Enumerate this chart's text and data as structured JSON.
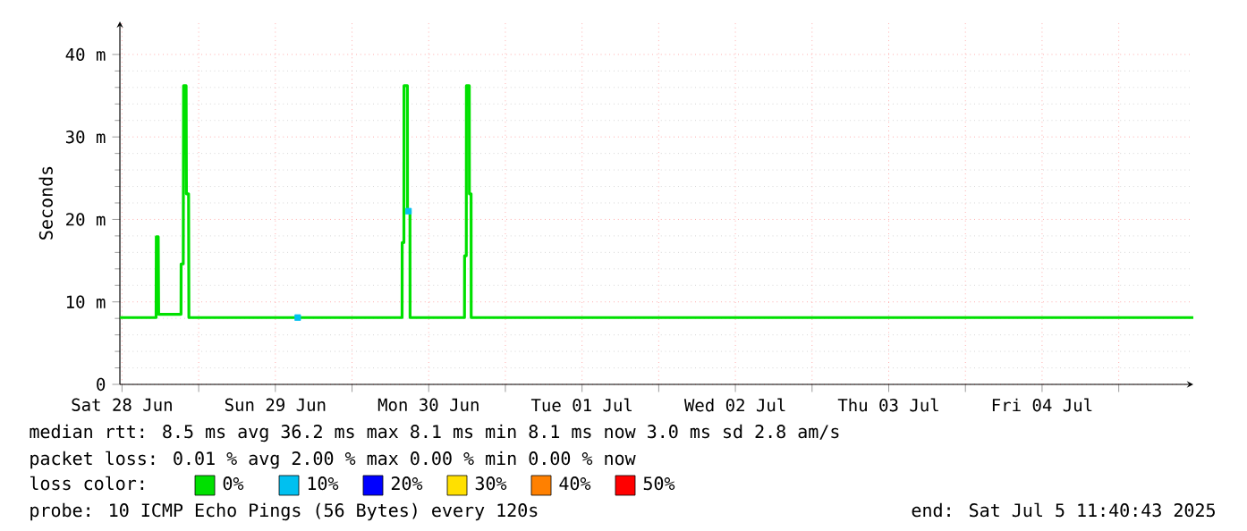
{
  "chart_data": {
    "type": "line",
    "ylabel": "Seconds",
    "xlim": [
      "2025-06-28T11:40",
      "2025-07-05T11:40"
    ],
    "xticks": [
      {
        "value": "2025-06-28T12:00",
        "label": "Sat 28 Jun"
      },
      {
        "value": "2025-06-29T00:00",
        "label": null
      },
      {
        "value": "2025-06-29T12:00",
        "label": "Sun 29 Jun"
      },
      {
        "value": "2025-06-30T00:00",
        "label": null
      },
      {
        "value": "2025-06-30T12:00",
        "label": "Mon 30 Jun"
      },
      {
        "value": "2025-07-01T00:00",
        "label": null
      },
      {
        "value": "2025-07-01T12:00",
        "label": "Tue 01 Jul"
      },
      {
        "value": "2025-07-02T00:00",
        "label": null
      },
      {
        "value": "2025-07-02T12:00",
        "label": "Wed 02 Jul"
      },
      {
        "value": "2025-07-03T00:00",
        "label": null
      },
      {
        "value": "2025-07-03T12:00",
        "label": "Thu 03 Jul"
      },
      {
        "value": "2025-07-04T00:00",
        "label": null
      },
      {
        "value": "2025-07-04T12:00",
        "label": "Fri 04 Jul"
      },
      {
        "value": "2025-07-05T00:00",
        "label": null
      }
    ],
    "ylim": [
      0,
      44
    ],
    "yticks": [
      0,
      {
        "value": 10,
        "label": "10 m"
      },
      {
        "value": 20,
        "label": "20 m"
      },
      {
        "value": 30,
        "label": "30 m"
      },
      {
        "value": 40,
        "label": "40 m"
      }
    ],
    "grid": true,
    "legend": "bottom",
    "series": [
      {
        "name": "0%",
        "color": "#00e000",
        "type": "line",
        "x": [
          "2025-06-28T11:40",
          "2025-06-28T17:20",
          "2025-06-28T17:22",
          "2025-06-28T17:40",
          "2025-06-28T17:44",
          "2025-06-28T21:14",
          "2025-06-28T21:15",
          "2025-06-28T21:35",
          "2025-06-28T21:38",
          "2025-06-28T22:02",
          "2025-06-28T22:05",
          "2025-06-28T22:25",
          "2025-06-28T22:28",
          "2025-06-30T07:50",
          "2025-06-30T07:51",
          "2025-06-30T08:07",
          "2025-06-30T08:08",
          "2025-06-30T08:40",
          "2025-06-30T08:41",
          "2025-06-30T09:04",
          "2025-06-30T09:05",
          "2025-06-30T17:36",
          "2025-06-30T17:37",
          "2025-06-30T17:53",
          "2025-06-30T17:54",
          "2025-06-30T18:21",
          "2025-06-30T18:22",
          "2025-06-30T18:38",
          "2025-06-30T18:39",
          "2025-07-05T11:40"
        ],
        "values": [
          8.1,
          8.1,
          17.9,
          17.9,
          8.5,
          8.5,
          14.6,
          14.6,
          36.2,
          36.2,
          23.1,
          23.1,
          8.1,
          8.1,
          17.2,
          17.2,
          36.2,
          36.2,
          21.0,
          21.0,
          8.1,
          8.1,
          15.6,
          15.6,
          36.2,
          36.2,
          23.1,
          23.1,
          8.1,
          8.1
        ]
      },
      {
        "name": "10%",
        "color": "#00c0f0",
        "type": "scatter",
        "marker": "square",
        "x": [
          "2025-06-29T15:30",
          "2025-06-30T08:50"
        ],
        "values": [
          8.1,
          21.0
        ]
      },
      {
        "name": "20%",
        "color": "#0000ff"
      },
      {
        "name": "30%",
        "color": "#ffe000"
      },
      {
        "name": "40%",
        "color": "#ff8000"
      },
      {
        "name": "50%",
        "color": "#ff0000"
      }
    ],
    "annotations": [
      "median rtt:  8.5 ms avg  36.2 ms max  8.1 ms min  8.1 ms now  3.0 ms sd  2.8   am/s",
      "packet loss: 0.01 % avg  2.00 % max  0.00 % min  0.00 % now",
      "loss color:",
      "probe:       10 ICMP Echo Pings (56 Bytes) every 120s",
      "end: Sat Jul  5 11:40:43 2025"
    ]
  }
}
